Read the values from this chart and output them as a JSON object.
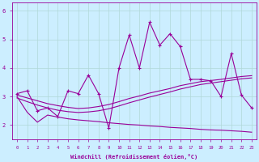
{
  "xlabel": "Windchill (Refroidissement éolien,°C)",
  "x": [
    0,
    1,
    2,
    3,
    4,
    5,
    6,
    7,
    8,
    9,
    10,
    11,
    12,
    13,
    14,
    15,
    16,
    17,
    18,
    19,
    20,
    21,
    22,
    23
  ],
  "line_jagged": [
    3.1,
    3.2,
    2.5,
    2.6,
    2.3,
    3.2,
    3.1,
    3.75,
    3.1,
    1.9,
    4.0,
    5.15,
    4.0,
    5.6,
    4.8,
    5.2,
    4.75,
    3.6,
    3.6,
    3.55,
    3.0,
    4.5,
    3.05,
    2.6
  ],
  "line_trend1": [
    3.05,
    2.95,
    2.85,
    2.75,
    2.68,
    2.62,
    2.58,
    2.6,
    2.65,
    2.72,
    2.82,
    2.93,
    3.02,
    3.12,
    3.2,
    3.28,
    3.38,
    3.45,
    3.52,
    3.56,
    3.6,
    3.65,
    3.7,
    3.73
  ],
  "line_trend2": [
    2.95,
    2.82,
    2.7,
    2.6,
    2.52,
    2.47,
    2.44,
    2.46,
    2.5,
    2.57,
    2.67,
    2.78,
    2.88,
    2.98,
    3.07,
    3.16,
    3.26,
    3.34,
    3.42,
    3.47,
    3.52,
    3.57,
    3.62,
    3.65
  ],
  "line_flat": [
    3.0,
    2.45,
    2.1,
    2.35,
    2.28,
    2.22,
    2.18,
    2.15,
    2.12,
    2.08,
    2.05,
    2.02,
    2.0,
    1.97,
    1.95,
    1.92,
    1.9,
    1.88,
    1.85,
    1.83,
    1.82,
    1.8,
    1.78,
    1.75
  ],
  "line_color": "#990099",
  "bg_color": "#cceeff",
  "grid_color": "#b0d8d8",
  "ylim": [
    1.5,
    6.3
  ],
  "yticks": [
    2,
    3,
    4,
    5,
    6
  ],
  "xticks": [
    0,
    1,
    2,
    3,
    4,
    5,
    6,
    7,
    8,
    9,
    10,
    11,
    12,
    13,
    14,
    15,
    16,
    17,
    18,
    19,
    20,
    21,
    22,
    23
  ]
}
